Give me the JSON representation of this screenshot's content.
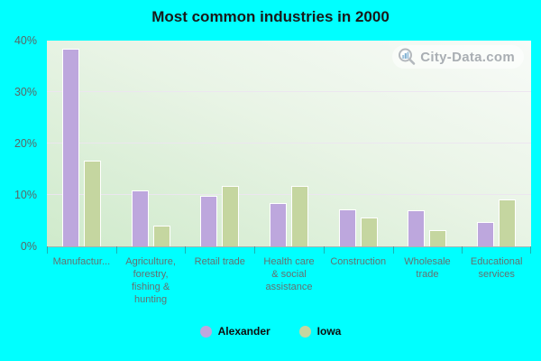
{
  "title": "Most common industries in 2000",
  "watermark": {
    "text": "City-Data.com"
  },
  "colors": {
    "background": "#00ffff",
    "alexander": "#bda7dd",
    "iowa": "#c5d6a0",
    "bar_border": "#ffffff",
    "title_text": "#191919",
    "axis_text": "#657070",
    "plot_gradient_bottom_left": "#cfeacb",
    "plot_gradient_top_right": "#f8fbf8",
    "gridline": "#ece5f0"
  },
  "y_axis": {
    "ticks": [
      "0%",
      "10%",
      "20%",
      "30%",
      "40%"
    ],
    "max": 40
  },
  "legend": [
    {
      "label": "Alexander",
      "color": "#bda7dd"
    },
    {
      "label": "Iowa",
      "color": "#c5d6a0"
    }
  ],
  "chart_data": {
    "type": "bar",
    "title": "Most common industries in 2000",
    "categories": [
      "Manufactur...",
      "Agriculture,\nforestry,\nfishing &\nhunting",
      "Retail trade",
      "Health care\n& social\nassistance",
      "Construction",
      "Wholesale\ntrade",
      "Educational\nservices"
    ],
    "series": [
      {
        "name": "Alexander",
        "color": "#bda7dd",
        "values": [
          38.5,
          10.9,
          9.8,
          8.4,
          7.2,
          7.1,
          4.7
        ]
      },
      {
        "name": "Iowa",
        "color": "#c5d6a0",
        "values": [
          16.7,
          4.0,
          11.7,
          11.8,
          5.7,
          3.2,
          9.2
        ]
      }
    ],
    "xlabel": "",
    "ylabel": "",
    "ylim": [
      0,
      40
    ],
    "ytick_step": 10,
    "grid": true,
    "legend_position": "bottom"
  }
}
